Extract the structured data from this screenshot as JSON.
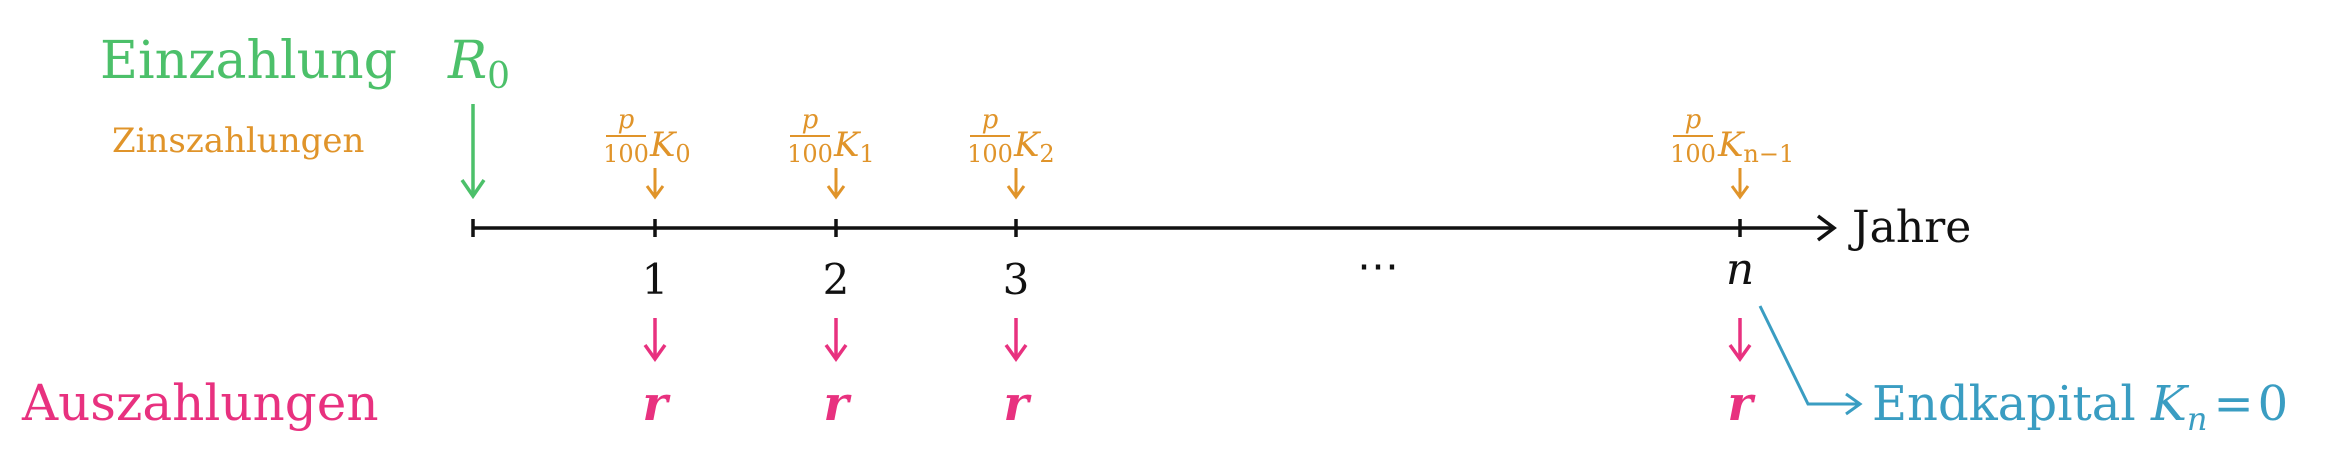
{
  "labels": {
    "einzahlung": "Einzahlung",
    "zinszahlungen": "Zinszahlungen",
    "auszahlungen": "Auszahlungen",
    "axis": "Jahre",
    "ellipsis": "⋯"
  },
  "deposit": {
    "symbol": "R",
    "subscript": "0"
  },
  "interest": {
    "numerator": "p",
    "denominator": "100",
    "symbol": "K",
    "subscripts": [
      "0",
      "1",
      "2",
      "n−1"
    ]
  },
  "years": [
    "1",
    "2",
    "3",
    "n"
  ],
  "withdrawal_symbol": "r",
  "end": {
    "text": "Endkapital",
    "symbol": "K",
    "subscript": "n",
    "equals": "=",
    "value": "0"
  },
  "colors": {
    "green": "#4cc06a",
    "orange": "#e0942a",
    "pink": "#e8317f",
    "blue": "#3a9dc2",
    "axis": "#111111"
  }
}
